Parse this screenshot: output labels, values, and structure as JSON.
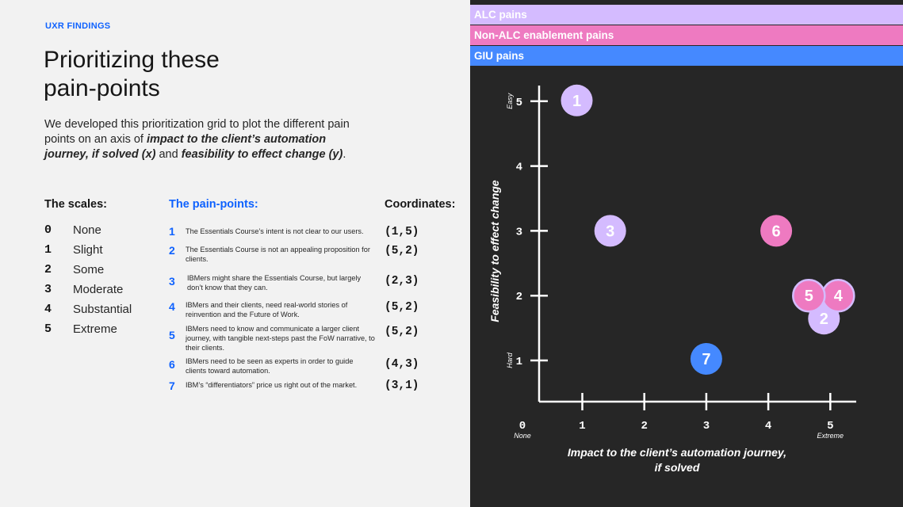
{
  "eyebrow": "UXR FINDINGS",
  "title": "Prioritizing these\npain-points",
  "description": {
    "part1": "We developed this prioritization grid to plot the different pain points on an axis of ",
    "bold1": "impact to the client’s automation journey, if solved (x)",
    "part2": " and ",
    "bold2": "feasibility to effect change (y)",
    "part3": "."
  },
  "headers": {
    "scales": "The scales:",
    "pains": "The pain-points:",
    "coords": "Coordinates:"
  },
  "scales": [
    {
      "num": "0",
      "label": "None"
    },
    {
      "num": "1",
      "label": "Slight"
    },
    {
      "num": "2",
      "label": "Some"
    },
    {
      "num": "3",
      "label": "Moderate"
    },
    {
      "num": "4",
      "label": "Substantial"
    },
    {
      "num": "5",
      "label": "Extreme"
    }
  ],
  "pain_points": [
    {
      "num": "1",
      "text": "The Essentials Course’s intent is not clear to our users.",
      "coord": "(1,5)"
    },
    {
      "num": "2",
      "text": "The Essentials Course is not an appealing proposition for clients.",
      "coord": "(5,2)"
    },
    {
      "num": "3",
      "text": "IBMers might share the Essentials Course, but largely don’t know that they can.",
      "coord": "(2,3)"
    },
    {
      "num": "4",
      "text": "IBMers and their clients, need real-world stories of reinvention and the Future of Work.",
      "coord": "(5,2)"
    },
    {
      "num": "5",
      "text": "IBMers need to know and communicate a  larger client journey, with tangible next-steps past the FoW narrative, to their clients.",
      "coord": "(5,2)"
    },
    {
      "num": "6",
      "text": "IBMers need to be seen as experts in order to guide clients toward automation.",
      "coord": "(4,3)"
    },
    {
      "num": "7",
      "text": "IBM’s “differentiators” price us right out of the market.",
      "coord": "(3,1)"
    }
  ],
  "legend": [
    "ALC pains",
    "Non-ALC enablement pains",
    "GIU pains"
  ],
  "colors": {
    "alc": "#d4bbff",
    "non_alc": "#ee7ac1",
    "giu": "#4589ff",
    "accent": "#0f62fe",
    "panel_bg": "#262626"
  },
  "chart_data": {
    "type": "scatter",
    "xlabel": "Impact to the client’s automation journey,\nif solved",
    "ylabel": "Feasibility to effect change",
    "x_ticks": [
      "0",
      "1",
      "2",
      "3",
      "4",
      "5"
    ],
    "y_ticks": [
      "1",
      "2",
      "3",
      "4",
      "5"
    ],
    "x_tick_notes": {
      "min": "None",
      "max": "Extreme"
    },
    "y_tick_notes": {
      "min": "Hard",
      "max": "Easy"
    },
    "xlim": [
      0,
      5
    ],
    "ylim": [
      0,
      5
    ],
    "points": [
      {
        "label": "1",
        "x": 1,
        "y": 5,
        "group": "ALC pains"
      },
      {
        "label": "2",
        "x": 5,
        "y": 2,
        "group": "ALC pains"
      },
      {
        "label": "3",
        "x": 2,
        "y": 3,
        "group": "ALC pains"
      },
      {
        "label": "4",
        "x": 5,
        "y": 2,
        "group": "Non-ALC enablement pains"
      },
      {
        "label": "5",
        "x": 5,
        "y": 2,
        "group": "Non-ALC enablement pains"
      },
      {
        "label": "6",
        "x": 4,
        "y": 3,
        "group": "Non-ALC enablement pains"
      },
      {
        "label": "7",
        "x": 3,
        "y": 1,
        "group": "GIU pains"
      }
    ]
  }
}
